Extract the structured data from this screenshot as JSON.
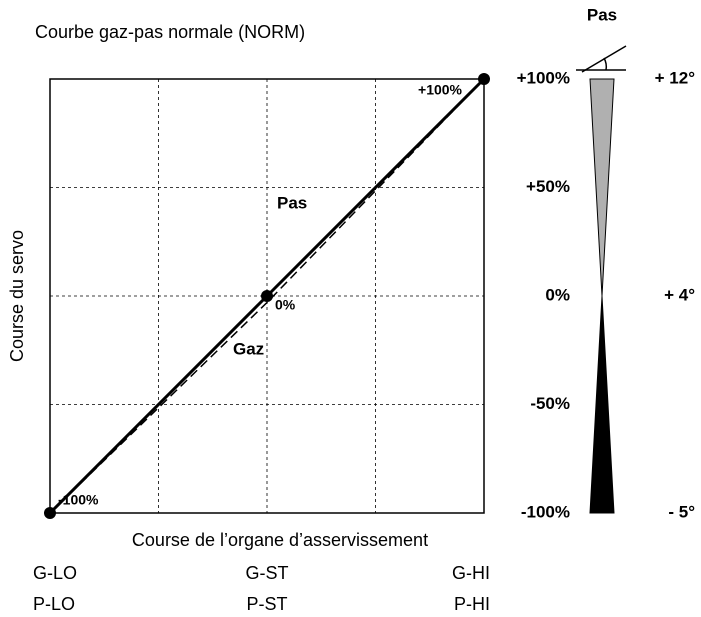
{
  "chart_data": {
    "type": "line",
    "title": "Courbe gaz-pas normale (NORM)",
    "x_label": "Course de l’organe d’asservissement",
    "y_label": "Course du servo",
    "xlim": [
      -100,
      100
    ],
    "xticks": [
      -100,
      -50,
      0,
      50,
      100
    ],
    "ylim": [
      -100,
      100
    ],
    "yticks": [
      {
        "value": -100,
        "label": "-100%"
      },
      {
        "value": -50,
        "label": "-50%"
      },
      {
        "value": 0,
        "label": "0%"
      },
      {
        "value": 50,
        "label": "+50%"
      },
      {
        "value": 100,
        "label": "+100%"
      }
    ],
    "grid": true,
    "x_labels": [
      {
        "value": -100,
        "gaz": "G-LO",
        "pas": "P-LO"
      },
      {
        "value": 0,
        "gaz": "G-ST",
        "pas": "P-ST"
      },
      {
        "value": 100,
        "gaz": "G-HI",
        "pas": "P-HI"
      }
    ],
    "x": [
      -100,
      0,
      100
    ],
    "series": [
      {
        "name": "Pas",
        "color": "#000000",
        "style": "solid",
        "markers": true,
        "values": [
          -100,
          0,
          100
        ],
        "value_labels": [
          "-100%",
          "0%",
          "+100%"
        ]
      },
      {
        "name": "Gaz",
        "color": "#000000",
        "style": "dashed",
        "markers": false,
        "values": [
          -100,
          -3,
          100
        ]
      }
    ],
    "pitch": {
      "title": "Pas",
      "ticks": [
        {
          "value": 12,
          "label": "+ 12°"
        },
        {
          "value": 4,
          "label": "+ 4°"
        },
        {
          "value": -5,
          "label": "- 5°"
        }
      ]
    }
  }
}
